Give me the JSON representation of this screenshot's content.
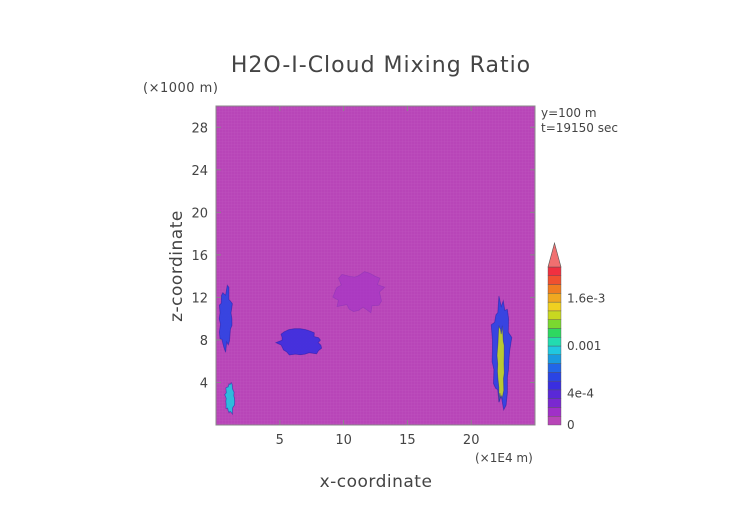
{
  "chart_data": {
    "type": "heatmap",
    "title": "H2O-I-Cloud Mixing Ratio",
    "xlabel": "x-coordinate",
    "ylabel": "z-coordinate",
    "x_unit": "(×1E4 m)",
    "y_unit": "(×1000 m)",
    "annotations": [
      "y=100 m",
      "t=19150 sec"
    ],
    "xlim": [
      0,
      25
    ],
    "ylim": [
      0,
      30
    ],
    "x_ticks": [
      "5",
      "10",
      "15",
      "20"
    ],
    "x_tick_values": [
      5,
      10,
      15,
      20
    ],
    "y_ticks": [
      "4",
      "8",
      "12",
      "16",
      "20",
      "24",
      "28"
    ],
    "y_tick_values": [
      4,
      8,
      12,
      16,
      20,
      24,
      28
    ],
    "grid": false,
    "colorbar": {
      "labels": [
        "0",
        "4e-4",
        "0.001",
        "1.6e-3"
      ],
      "label_values": [
        0,
        0.0004,
        0.001,
        0.0016
      ],
      "range": [
        0,
        0.002
      ],
      "extend": "max",
      "colors": [
        "#b845b8",
        "#a030c8",
        "#7a28d0",
        "#5a28d8",
        "#3a2ee0",
        "#2a44e4",
        "#2266e8",
        "#1a9ae0",
        "#20c8e0",
        "#22dcb0",
        "#2ed860",
        "#7ad830",
        "#c8d820",
        "#f0d020",
        "#f0a820",
        "#f07c20",
        "#f05030",
        "#f03040",
        "#f07070"
      ]
    },
    "background_value": 0,
    "features": [
      {
        "x": [
          0.2,
          1.3
        ],
        "z": [
          7,
          13
        ],
        "level": "low",
        "color": "#2a44e4"
      },
      {
        "x": [
          0.7,
          1.5
        ],
        "z": [
          1.0,
          4.0
        ],
        "level": "low",
        "color": "#20c8e0"
      },
      {
        "x": [
          4.7,
          8.5
        ],
        "z": [
          6.5,
          9.0
        ],
        "level": "low",
        "color": "#3a2ee0"
      },
      {
        "x": [
          9.2,
          13.2
        ],
        "z": [
          10.5,
          14.5
        ],
        "level": "trace",
        "color": "#a030c8"
      },
      {
        "x": [
          21.5,
          23.2
        ],
        "z": [
          1.5,
          12.5
        ],
        "level": "low",
        "color": "#2a44e4"
      },
      {
        "x": [
          22.0,
          22.6
        ],
        "z": [
          2.0,
          9.5
        ],
        "level": "high",
        "color": "#c8d820"
      }
    ]
  }
}
